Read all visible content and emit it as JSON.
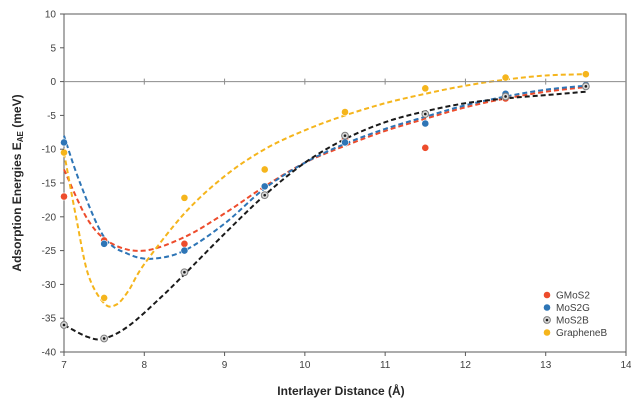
{
  "chart_data": {
    "type": "scatter",
    "xlabel": "Interlayer Distance (Å)",
    "ylabel": "Adsorption Energies E",
    "ylabel_sub": "AE",
    "ylabel_unit": " (meV)",
    "xlim": [
      7,
      14
    ],
    "ylim": [
      -40,
      10
    ],
    "xticks": [
      7,
      8,
      9,
      10,
      11,
      12,
      13,
      14
    ],
    "yticks": [
      10,
      5,
      0,
      -5,
      -10,
      -15,
      -20,
      -25,
      -30,
      -35,
      -40
    ],
    "grid": false,
    "legend_position": "bottom-right",
    "series": [
      {
        "name": "GMoS2",
        "color": "#ED4C2C",
        "marker": "filled",
        "x": [
          7.0,
          7.5,
          8.5,
          9.5,
          10.5,
          11.5,
          12.5,
          13.5
        ],
        "y": [
          -17.0,
          -23.5,
          -24.0,
          -15.5,
          -8.5,
          -9.8,
          -2.5,
          -0.7
        ],
        "trend": [
          [
            7.0,
            -13.0
          ],
          [
            7.3,
            -20.5
          ],
          [
            7.6,
            -24.0
          ],
          [
            8.0,
            -25.0
          ],
          [
            8.5,
            -23.0
          ],
          [
            9.0,
            -19.5
          ],
          [
            9.5,
            -15.5
          ],
          [
            10.0,
            -12.0
          ],
          [
            10.5,
            -9.5
          ],
          [
            11.0,
            -7.3
          ],
          [
            11.5,
            -5.5
          ],
          [
            12.0,
            -3.8
          ],
          [
            12.5,
            -2.5
          ],
          [
            13.0,
            -1.5
          ],
          [
            13.5,
            -0.8
          ]
        ]
      },
      {
        "name": "MoS2G",
        "color": "#2E75B6",
        "marker": "filled",
        "x": [
          7.0,
          7.5,
          8.5,
          9.5,
          10.5,
          11.5,
          12.5,
          13.5
        ],
        "y": [
          -9.0,
          -24.0,
          -25.0,
          -15.5,
          -9.0,
          -6.2,
          -1.8,
          -0.5
        ],
        "trend": [
          [
            7.0,
            -8.0
          ],
          [
            7.2,
            -15.0
          ],
          [
            7.5,
            -23.0
          ],
          [
            7.8,
            -25.5
          ],
          [
            8.1,
            -26.2
          ],
          [
            8.5,
            -25.0
          ],
          [
            9.0,
            -21.0
          ],
          [
            9.5,
            -15.8
          ],
          [
            10.0,
            -12.0
          ],
          [
            10.5,
            -9.2
          ],
          [
            11.0,
            -7.0
          ],
          [
            11.5,
            -5.2
          ],
          [
            12.0,
            -3.5
          ],
          [
            12.5,
            -2.2
          ],
          [
            13.0,
            -1.2
          ],
          [
            13.5,
            -0.6
          ]
        ]
      },
      {
        "name": "MoS2B",
        "color": "#1a1a1a",
        "marker": "ring",
        "x": [
          7.0,
          7.5,
          8.5,
          9.5,
          10.5,
          11.5,
          12.5,
          13.5
        ],
        "y": [
          -36.0,
          -38.0,
          -28.2,
          -16.8,
          -8.0,
          -4.8,
          -2.2,
          -0.7
        ],
        "trend": [
          [
            7.0,
            -36.0
          ],
          [
            7.3,
            -37.8
          ],
          [
            7.5,
            -38.0
          ],
          [
            7.8,
            -36.2
          ],
          [
            8.2,
            -32.0
          ],
          [
            8.5,
            -28.5
          ],
          [
            9.0,
            -22.5
          ],
          [
            9.5,
            -16.8
          ],
          [
            10.0,
            -12.0
          ],
          [
            10.5,
            -8.5
          ],
          [
            11.0,
            -6.0
          ],
          [
            11.5,
            -4.4
          ],
          [
            12.0,
            -3.2
          ],
          [
            12.5,
            -2.5
          ],
          [
            13.0,
            -2.0
          ],
          [
            13.5,
            -1.5
          ]
        ]
      },
      {
        "name": "GrapheneB",
        "color": "#F5B51C",
        "marker": "filled",
        "x": [
          7.0,
          7.5,
          8.5,
          9.5,
          10.5,
          11.5,
          12.5,
          13.5
        ],
        "y": [
          -10.5,
          -32.0,
          -17.2,
          -13.0,
          -4.5,
          -1.0,
          0.6,
          1.1
        ],
        "trend": [
          [
            7.0,
            -10.5
          ],
          [
            7.15,
            -20.0
          ],
          [
            7.3,
            -28.5
          ],
          [
            7.5,
            -32.8
          ],
          [
            7.65,
            -33.0
          ],
          [
            7.8,
            -31.0
          ],
          [
            8.0,
            -27.0
          ],
          [
            8.5,
            -19.5
          ],
          [
            9.0,
            -14.0
          ],
          [
            9.5,
            -10.0
          ],
          [
            10.0,
            -7.2
          ],
          [
            10.5,
            -5.0
          ],
          [
            11.0,
            -3.2
          ],
          [
            11.5,
            -1.8
          ],
          [
            12.0,
            -0.6
          ],
          [
            12.5,
            0.3
          ],
          [
            13.0,
            0.9
          ],
          [
            13.5,
            1.1
          ]
        ]
      }
    ]
  }
}
